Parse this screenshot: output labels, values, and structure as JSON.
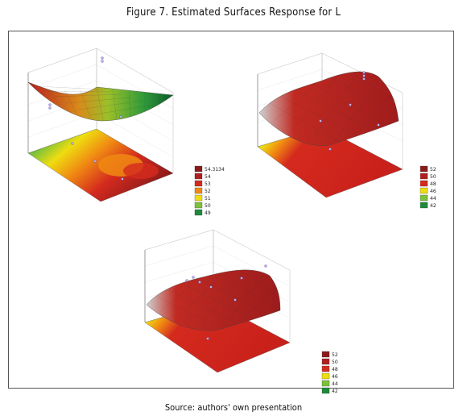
{
  "figure": {
    "title": "Figure 7. Estimated Surfaces Response for L",
    "source": "Source: authors' own presentation"
  },
  "colors": {
    "dark_red": "#8b1a1a",
    "red": "#d42a1e",
    "orange": "#f08a12",
    "yellow": "#eedd10",
    "light_green": "#7cc23a",
    "green": "#1f8a3a",
    "dark_green": "#0c5a28",
    "mesh": "#a0a0a0"
  },
  "chart_data": [
    {
      "type": "surface",
      "panel": "top-left",
      "legend": {
        "placement": "bottom-right",
        "levels": [
          "54.3134",
          "54",
          "53",
          "52",
          "51",
          "50",
          "49"
        ]
      },
      "legend_colors": [
        "#8b1a1a",
        "#b01e1e",
        "#d42a1e",
        "#f08a12",
        "#eedd10",
        "#7cc23a",
        "#1f8a3a"
      ]
    },
    {
      "type": "surface",
      "panel": "top-right",
      "legend": {
        "placement": "bottom-right",
        "levels": [
          "52",
          "50",
          "48",
          "46",
          "44",
          "42"
        ]
      },
      "legend_colors": [
        "#8b1a1a",
        "#b01e1e",
        "#d42a1e",
        "#eedd10",
        "#7cc23a",
        "#1f8a3a"
      ]
    },
    {
      "type": "surface",
      "panel": "bottom-center",
      "legend": {
        "placement": "bottom-right",
        "levels": [
          "52",
          "50",
          "48",
          "46",
          "44",
          "42"
        ]
      },
      "legend_colors": [
        "#8b1a1a",
        "#b01e1e",
        "#d42a1e",
        "#eedd10",
        "#7cc23a",
        "#1f8a3a"
      ]
    }
  ]
}
